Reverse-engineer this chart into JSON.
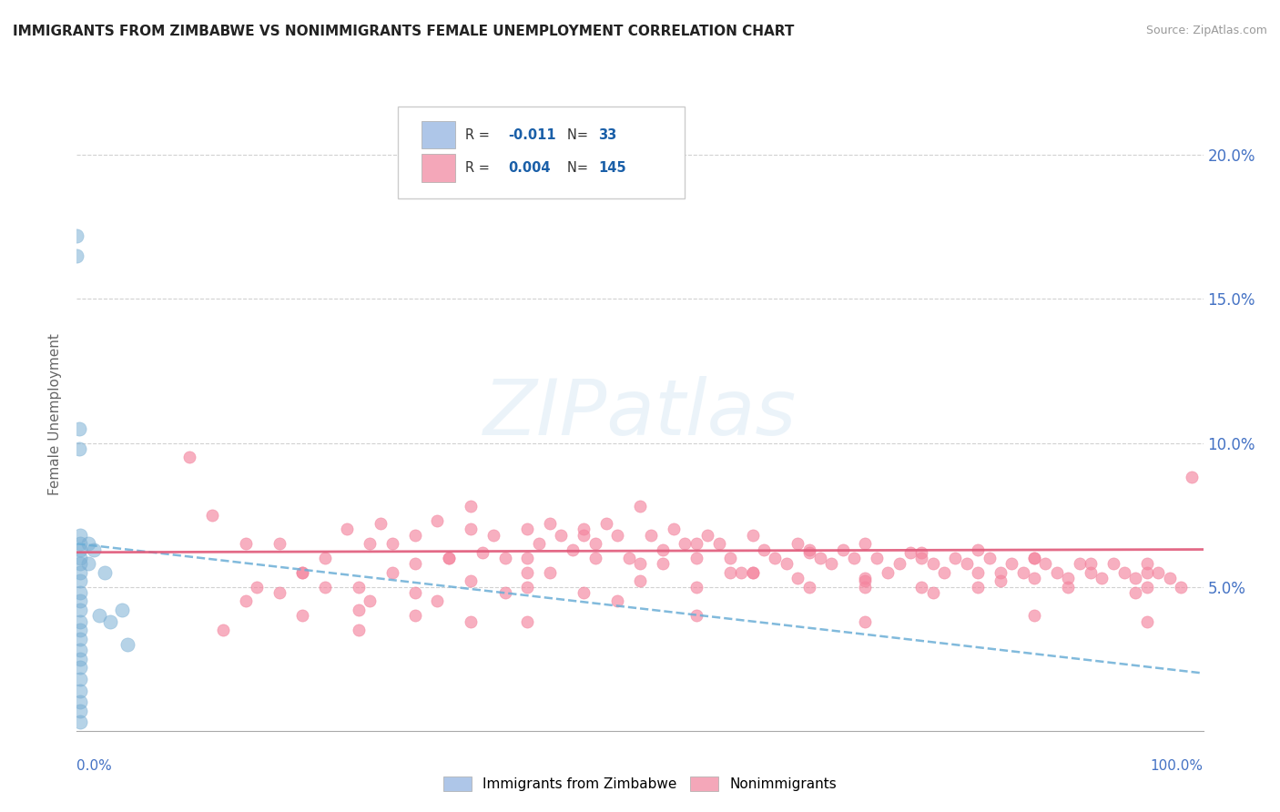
{
  "title": "IMMIGRANTS FROM ZIMBABWE VS NONIMMIGRANTS FEMALE UNEMPLOYMENT CORRELATION CHART",
  "source": "Source: ZipAtlas.com",
  "ylabel": "Female Unemployment",
  "xlim": [
    0,
    1.0
  ],
  "ylim": [
    0,
    0.22
  ],
  "yticks": [
    0.05,
    0.1,
    0.15,
    0.2
  ],
  "ytick_labels": [
    "5.0%",
    "10.0%",
    "15.0%",
    "20.0%"
  ],
  "xtick_labels": [
    "0.0%",
    "100.0%"
  ],
  "xticks": [
    0.0,
    1.0
  ],
  "legend_entries": [
    {
      "label": "Immigrants from Zimbabwe",
      "color": "#aec6e8",
      "R": "-0.011",
      "N": "33"
    },
    {
      "label": "Nonimmigrants",
      "color": "#f4a7b9",
      "R": "0.004",
      "N": "145"
    }
  ],
  "blue_scatter_color": "#7bafd4",
  "pink_scatter_color": "#f4849e",
  "blue_line_color": "#6baed6",
  "pink_line_color": "#e05a7a",
  "background_color": "#ffffff",
  "grid_color": "#cccccc",
  "title_color": "#222222",
  "axis_label_color": "#666666",
  "tick_color": "#4472c4",
  "blue_line_y0": 0.065,
  "blue_line_y1": 0.02,
  "pink_line_y0": 0.062,
  "pink_line_y1": 0.063,
  "blue_points": [
    [
      0.0,
      0.172
    ],
    [
      0.0,
      0.165
    ],
    [
      0.002,
      0.105
    ],
    [
      0.002,
      0.098
    ],
    [
      0.003,
      0.068
    ],
    [
      0.003,
      0.06
    ],
    [
      0.003,
      0.065
    ],
    [
      0.003,
      0.063
    ],
    [
      0.003,
      0.058
    ],
    [
      0.003,
      0.055
    ],
    [
      0.003,
      0.052
    ],
    [
      0.003,
      0.048
    ],
    [
      0.003,
      0.045
    ],
    [
      0.003,
      0.042
    ],
    [
      0.003,
      0.038
    ],
    [
      0.003,
      0.035
    ],
    [
      0.003,
      0.032
    ],
    [
      0.003,
      0.028
    ],
    [
      0.003,
      0.025
    ],
    [
      0.003,
      0.022
    ],
    [
      0.003,
      0.018
    ],
    [
      0.003,
      0.014
    ],
    [
      0.003,
      0.01
    ],
    [
      0.003,
      0.007
    ],
    [
      0.003,
      0.003
    ],
    [
      0.01,
      0.065
    ],
    [
      0.01,
      0.058
    ],
    [
      0.015,
      0.063
    ],
    [
      0.02,
      0.04
    ],
    [
      0.025,
      0.055
    ],
    [
      0.03,
      0.038
    ],
    [
      0.04,
      0.042
    ],
    [
      0.045,
      0.03
    ]
  ],
  "pink_points": [
    [
      0.1,
      0.095
    ],
    [
      0.12,
      0.075
    ],
    [
      0.15,
      0.065
    ],
    [
      0.16,
      0.05
    ],
    [
      0.18,
      0.065
    ],
    [
      0.2,
      0.055
    ],
    [
      0.22,
      0.06
    ],
    [
      0.24,
      0.07
    ],
    [
      0.26,
      0.065
    ],
    [
      0.27,
      0.072
    ],
    [
      0.28,
      0.065
    ],
    [
      0.3,
      0.068
    ],
    [
      0.32,
      0.073
    ],
    [
      0.33,
      0.06
    ],
    [
      0.35,
      0.078
    ],
    [
      0.36,
      0.062
    ],
    [
      0.37,
      0.068
    ],
    [
      0.38,
      0.06
    ],
    [
      0.4,
      0.07
    ],
    [
      0.41,
      0.065
    ],
    [
      0.42,
      0.072
    ],
    [
      0.43,
      0.068
    ],
    [
      0.44,
      0.063
    ],
    [
      0.45,
      0.07
    ],
    [
      0.46,
      0.065
    ],
    [
      0.47,
      0.072
    ],
    [
      0.48,
      0.068
    ],
    [
      0.49,
      0.06
    ],
    [
      0.5,
      0.078
    ],
    [
      0.51,
      0.068
    ],
    [
      0.52,
      0.063
    ],
    [
      0.53,
      0.07
    ],
    [
      0.54,
      0.065
    ],
    [
      0.55,
      0.06
    ],
    [
      0.56,
      0.068
    ],
    [
      0.57,
      0.065
    ],
    [
      0.58,
      0.06
    ],
    [
      0.59,
      0.055
    ],
    [
      0.6,
      0.068
    ],
    [
      0.61,
      0.063
    ],
    [
      0.62,
      0.06
    ],
    [
      0.63,
      0.058
    ],
    [
      0.64,
      0.065
    ],
    [
      0.65,
      0.062
    ],
    [
      0.66,
      0.06
    ],
    [
      0.67,
      0.058
    ],
    [
      0.68,
      0.063
    ],
    [
      0.69,
      0.06
    ],
    [
      0.7,
      0.065
    ],
    [
      0.71,
      0.06
    ],
    [
      0.72,
      0.055
    ],
    [
      0.73,
      0.058
    ],
    [
      0.74,
      0.062
    ],
    [
      0.75,
      0.06
    ],
    [
      0.76,
      0.058
    ],
    [
      0.77,
      0.055
    ],
    [
      0.78,
      0.06
    ],
    [
      0.79,
      0.058
    ],
    [
      0.8,
      0.063
    ],
    [
      0.81,
      0.06
    ],
    [
      0.82,
      0.055
    ],
    [
      0.83,
      0.058
    ],
    [
      0.84,
      0.055
    ],
    [
      0.85,
      0.06
    ],
    [
      0.86,
      0.058
    ],
    [
      0.87,
      0.055
    ],
    [
      0.88,
      0.053
    ],
    [
      0.89,
      0.058
    ],
    [
      0.9,
      0.055
    ],
    [
      0.91,
      0.053
    ],
    [
      0.92,
      0.058
    ],
    [
      0.93,
      0.055
    ],
    [
      0.94,
      0.053
    ],
    [
      0.95,
      0.05
    ],
    [
      0.96,
      0.055
    ],
    [
      0.97,
      0.053
    ],
    [
      0.98,
      0.05
    ],
    [
      0.99,
      0.088
    ],
    [
      0.25,
      0.05
    ],
    [
      0.3,
      0.048
    ],
    [
      0.35,
      0.052
    ],
    [
      0.4,
      0.05
    ],
    [
      0.45,
      0.048
    ],
    [
      0.5,
      0.052
    ],
    [
      0.2,
      0.04
    ],
    [
      0.25,
      0.042
    ],
    [
      0.3,
      0.04
    ],
    [
      0.35,
      0.038
    ],
    [
      0.28,
      0.055
    ],
    [
      0.32,
      0.045
    ],
    [
      0.38,
      0.048
    ],
    [
      0.42,
      0.055
    ],
    [
      0.48,
      0.045
    ],
    [
      0.55,
      0.05
    ],
    [
      0.6,
      0.055
    ],
    [
      0.65,
      0.05
    ],
    [
      0.7,
      0.052
    ],
    [
      0.75,
      0.05
    ],
    [
      0.8,
      0.055
    ],
    [
      0.85,
      0.053
    ],
    [
      0.9,
      0.058
    ],
    [
      0.95,
      0.055
    ],
    [
      0.15,
      0.045
    ],
    [
      0.18,
      0.048
    ],
    [
      0.22,
      0.05
    ],
    [
      0.26,
      0.045
    ],
    [
      0.33,
      0.06
    ],
    [
      0.4,
      0.055
    ],
    [
      0.46,
      0.06
    ],
    [
      0.52,
      0.058
    ],
    [
      0.58,
      0.055
    ],
    [
      0.64,
      0.053
    ],
    [
      0.7,
      0.05
    ],
    [
      0.76,
      0.048
    ],
    [
      0.82,
      0.052
    ],
    [
      0.88,
      0.05
    ],
    [
      0.94,
      0.048
    ],
    [
      0.35,
      0.07
    ],
    [
      0.45,
      0.068
    ],
    [
      0.55,
      0.065
    ],
    [
      0.65,
      0.063
    ],
    [
      0.75,
      0.062
    ],
    [
      0.85,
      0.06
    ],
    [
      0.95,
      0.058
    ],
    [
      0.13,
      0.035
    ],
    [
      0.25,
      0.035
    ],
    [
      0.4,
      0.038
    ],
    [
      0.55,
      0.04
    ],
    [
      0.7,
      0.038
    ],
    [
      0.85,
      0.04
    ],
    [
      0.95,
      0.038
    ],
    [
      0.2,
      0.055
    ],
    [
      0.3,
      0.058
    ],
    [
      0.4,
      0.06
    ],
    [
      0.5,
      0.058
    ],
    [
      0.6,
      0.055
    ],
    [
      0.7,
      0.053
    ],
    [
      0.8,
      0.05
    ]
  ]
}
